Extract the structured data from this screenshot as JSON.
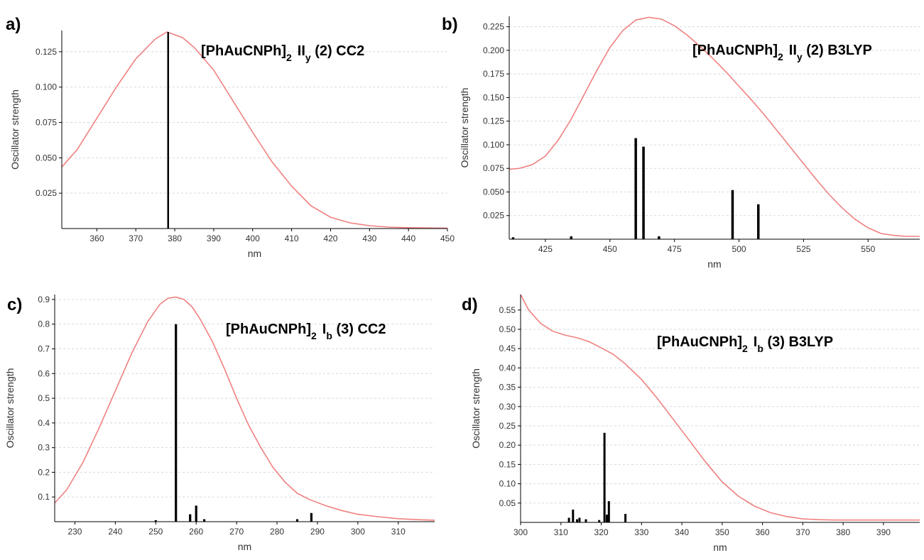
{
  "chart_data": [
    {
      "type": "bar",
      "panel": "a)",
      "title": {
        "base": "[PhAuCNPh]",
        "sub": "2",
        "state": "II",
        "state_sub": "y",
        "rest": " (2) CC2"
      },
      "xlabel": "nm",
      "ylabel": "Oscillator strength",
      "xlim": [
        351,
        450
      ],
      "ylim": [
        0,
        0.14
      ],
      "xticks": [
        360,
        370,
        380,
        390,
        400,
        410,
        420,
        430,
        440,
        450
      ],
      "yticks": [
        0.025,
        0.05,
        0.075,
        0.1,
        0.125
      ],
      "ytick_labels": [
        "0.025",
        "0.050",
        "0.075",
        "0.100",
        "0.125"
      ],
      "grid": true,
      "colors": {
        "curve": "#f08080",
        "sticks": "#000000"
      },
      "sticks": [
        {
          "x": 378.3,
          "y": 0.139
        }
      ],
      "curve": {
        "x": [
          351,
          355,
          360,
          365,
          370,
          375,
          378,
          382,
          385,
          390,
          395,
          400,
          405,
          410,
          415,
          420,
          425,
          430,
          435,
          440,
          445,
          450
        ],
        "y": [
          0.0435,
          0.056,
          0.078,
          0.1,
          0.12,
          0.134,
          0.139,
          0.135,
          0.128,
          0.112,
          0.09,
          0.068,
          0.047,
          0.03,
          0.016,
          0.008,
          0.004,
          0.002,
          0.001,
          0.0006,
          0.0004,
          0.0003
        ]
      }
    },
    {
      "type": "bar",
      "panel": "b)",
      "title": {
        "base": "[PhAuCNPh]",
        "sub": "2",
        "state": "II",
        "state_sub": "y",
        "rest": " (2) B3LYP"
      },
      "xlabel": "nm",
      "ylabel": "Oscillator strength",
      "xlim": [
        411,
        570
      ],
      "ylim": [
        0,
        0.236
      ],
      "xticks": [
        425,
        450,
        475,
        500,
        525,
        550
      ],
      "yticks": [
        0.025,
        0.05,
        0.075,
        0.1,
        0.125,
        0.15,
        0.175,
        0.2,
        0.225
      ],
      "ytick_labels": [
        "0.025",
        "0.050",
        "0.075",
        "0.100",
        "0.125",
        "0.150",
        "0.175",
        "0.200",
        "0.225"
      ],
      "grid": true,
      "colors": {
        "curve": "#f08080",
        "sticks": "#000000"
      },
      "sticks": [
        {
          "x": 412.5,
          "y": 0.002
        },
        {
          "x": 435,
          "y": 0.003
        },
        {
          "x": 460,
          "y": 0.107
        },
        {
          "x": 463,
          "y": 0.098
        },
        {
          "x": 469,
          "y": 0.003
        },
        {
          "x": 497.5,
          "y": 0.052
        },
        {
          "x": 507.5,
          "y": 0.037
        }
      ],
      "curve": {
        "x": [
          411,
          415,
          420,
          425,
          430,
          435,
          440,
          445,
          450,
          455,
          460,
          465,
          470,
          475,
          480,
          485,
          490,
          495,
          500,
          505,
          510,
          515,
          520,
          525,
          530,
          535,
          540,
          545,
          550,
          555,
          560,
          565,
          570
        ],
        "y": [
          0.074,
          0.075,
          0.079,
          0.088,
          0.105,
          0.127,
          0.153,
          0.179,
          0.203,
          0.221,
          0.232,
          0.235,
          0.233,
          0.226,
          0.216,
          0.204,
          0.191,
          0.177,
          0.162,
          0.147,
          0.131,
          0.114,
          0.097,
          0.08,
          0.063,
          0.047,
          0.033,
          0.021,
          0.012,
          0.006,
          0.004,
          0.003,
          0.003
        ]
      }
    },
    {
      "type": "bar",
      "panel": "c)",
      "title": {
        "base": "[PhAuCNPh]",
        "sub": "2",
        "state": "I",
        "state_sub": "b",
        "rest": " (3) CC2"
      },
      "xlabel": "nm",
      "ylabel": "Oscillator strength",
      "xlim": [
        225,
        319
      ],
      "ylim": [
        0,
        0.92
      ],
      "xticks": [
        230,
        240,
        250,
        260,
        270,
        280,
        290,
        300,
        310
      ],
      "yticks": [
        0.1,
        0.2,
        0.3,
        0.4,
        0.5,
        0.6,
        0.7,
        0.8,
        0.9
      ],
      "ytick_labels": [
        "0.1",
        "0.2",
        "0.3",
        "0.4",
        "0.5",
        "0.6",
        "0.7",
        "0.8",
        "0.9"
      ],
      "grid": true,
      "colors": {
        "curve": "#f08080",
        "sticks": "#000000"
      },
      "sticks": [
        {
          "x": 250,
          "y": 0.005
        },
        {
          "x": 255,
          "y": 0.8
        },
        {
          "x": 258.5,
          "y": 0.03
        },
        {
          "x": 260,
          "y": 0.065
        },
        {
          "x": 262,
          "y": 0.01
        },
        {
          "x": 285,
          "y": 0.01
        },
        {
          "x": 288.5,
          "y": 0.035
        }
      ],
      "curve": {
        "x": [
          225,
          228,
          232,
          236,
          240,
          244,
          248,
          251,
          253,
          255,
          257,
          259,
          261,
          264,
          267,
          270,
          273,
          276,
          279,
          282,
          285,
          288,
          292,
          296,
          300,
          305,
          310,
          315,
          319
        ],
        "y": [
          0.075,
          0.13,
          0.24,
          0.38,
          0.53,
          0.68,
          0.81,
          0.88,
          0.905,
          0.91,
          0.9,
          0.87,
          0.82,
          0.73,
          0.62,
          0.5,
          0.39,
          0.3,
          0.22,
          0.16,
          0.115,
          0.09,
          0.065,
          0.045,
          0.03,
          0.02,
          0.012,
          0.008,
          0.006
        ]
      }
    },
    {
      "type": "bar",
      "panel": "d)",
      "title": {
        "base": "[PhAuCNPh]",
        "sub": "2",
        "state": "I",
        "state_sub": "b",
        "rest": " (3) B3LYP"
      },
      "xlabel": "nm",
      "ylabel": "Oscillator strength",
      "xlim": [
        300,
        399
      ],
      "ylim": [
        0,
        0.59
      ],
      "xticks": [
        300,
        310,
        320,
        330,
        340,
        350,
        360,
        370,
        380,
        390
      ],
      "yticks": [
        0.05,
        0.1,
        0.15,
        0.2,
        0.25,
        0.3,
        0.35,
        0.4,
        0.45,
        0.5,
        0.55
      ],
      "ytick_labels": [
        "0.05",
        "0.10",
        "0.15",
        "0.20",
        "0.25",
        "0.30",
        "0.35",
        "0.40",
        "0.45",
        "0.50",
        "0.55"
      ],
      "grid": true,
      "colors": {
        "curve": "#f08080",
        "sticks": "#000000"
      },
      "sticks": [
        {
          "x": 312,
          "y": 0.012
        },
        {
          "x": 313,
          "y": 0.033
        },
        {
          "x": 314,
          "y": 0.008
        },
        {
          "x": 314.6,
          "y": 0.012
        },
        {
          "x": 316.2,
          "y": 0.008
        },
        {
          "x": 319.5,
          "y": 0.006
        },
        {
          "x": 320.8,
          "y": 0.232
        },
        {
          "x": 321.4,
          "y": 0.02
        },
        {
          "x": 321.9,
          "y": 0.055
        },
        {
          "x": 326,
          "y": 0.022
        }
      ],
      "curve": {
        "x": [
          300,
          302,
          305,
          308,
          311,
          314,
          317,
          320,
          323,
          326,
          330,
          334,
          338,
          342,
          346,
          350,
          354,
          358,
          362,
          366,
          370,
          374,
          378,
          382,
          386,
          390,
          395,
          399
        ],
        "y": [
          0.59,
          0.55,
          0.515,
          0.495,
          0.485,
          0.478,
          0.468,
          0.452,
          0.435,
          0.41,
          0.37,
          0.32,
          0.265,
          0.21,
          0.155,
          0.105,
          0.068,
          0.042,
          0.025,
          0.015,
          0.009,
          0.007,
          0.006,
          0.006,
          0.006,
          0.006,
          0.006,
          0.006
        ]
      }
    }
  ]
}
